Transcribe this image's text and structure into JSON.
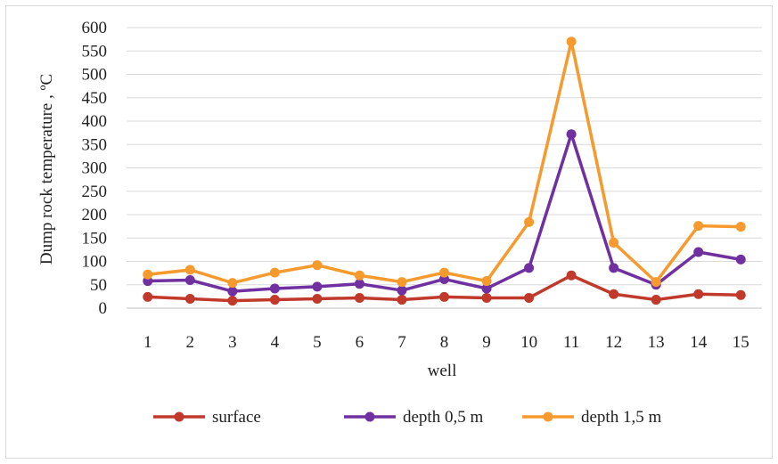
{
  "chart_data": {
    "type": "line",
    "xlabel": "well",
    "ylabel": "Dump rock temperature , ºC",
    "categories": [
      "1",
      "2",
      "3",
      "4",
      "5",
      "6",
      "7",
      "8",
      "9",
      "10",
      "11",
      "12",
      "13",
      "14",
      "15"
    ],
    "ylim": [
      0,
      600
    ],
    "yticks": [
      0,
      50,
      100,
      150,
      200,
      250,
      300,
      350,
      400,
      450,
      500,
      550,
      600
    ],
    "grid": "horizontal",
    "legend_position": "bottom",
    "series": [
      {
        "name": "surface",
        "color": "#c0392b",
        "values": [
          24,
          20,
          16,
          18,
          20,
          22,
          18,
          24,
          22,
          22,
          70,
          30,
          18,
          30,
          28
        ]
      },
      {
        "name": "depth 0,5 m",
        "color": "#7030a0",
        "values": [
          58,
          60,
          36,
          42,
          46,
          52,
          38,
          62,
          42,
          86,
          372,
          86,
          50,
          120,
          104
        ]
      },
      {
        "name": "depth 1,5 m",
        "color": "#f79a2e",
        "values": [
          72,
          82,
          54,
          76,
          92,
          70,
          56,
          76,
          58,
          184,
          570,
          140,
          56,
          176,
          174
        ]
      }
    ]
  }
}
